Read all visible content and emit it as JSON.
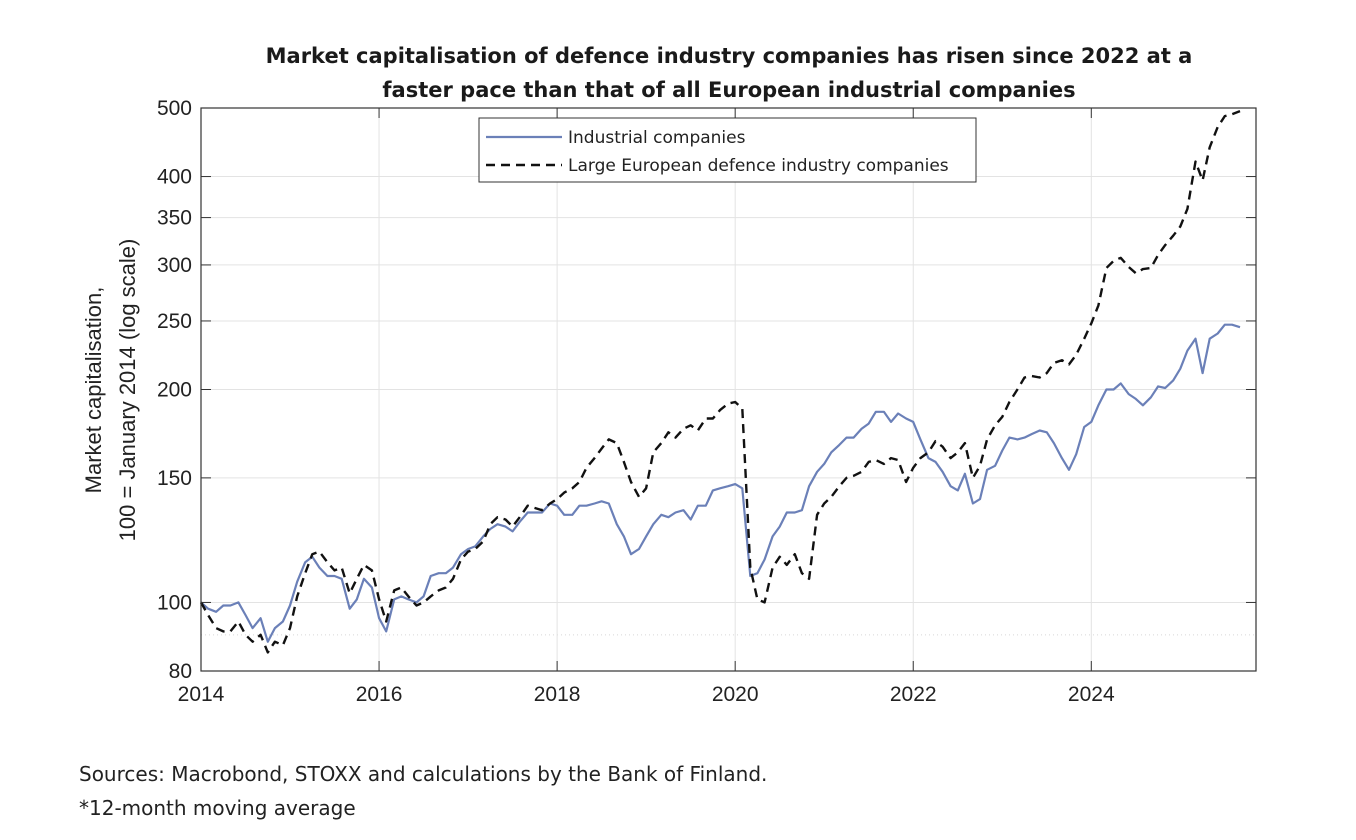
{
  "chart_data": {
    "type": "line",
    "title_lines": [
      "Market capitalisation of defence industry companies has risen since 2022 at a",
      "faster pace than that of all European industrial companies"
    ],
    "ylabel_lines": [
      "Market capitalisation,",
      "100 = January 2014 (log scale)"
    ],
    "xlabel": "",
    "y_scale": "log",
    "ylim": [
      80,
      500
    ],
    "xlim": [
      2014.0,
      2025.85
    ],
    "y_ticks": [
      80,
      100,
      150,
      200,
      250,
      300,
      350,
      400,
      500
    ],
    "x_ticks": [
      2014,
      2016,
      2018,
      2020,
      2022,
      2024
    ],
    "grid": true,
    "legend_position": "top-center",
    "series": [
      {
        "name": "Industrial companies",
        "color": "#6b80b8",
        "style": "solid",
        "points": [
          [
            2014.0,
            100
          ],
          [
            2014.08,
            98
          ],
          [
            2014.17,
            97
          ],
          [
            2014.25,
            99
          ],
          [
            2014.33,
            99
          ],
          [
            2014.42,
            100
          ],
          [
            2014.5,
            96
          ],
          [
            2014.58,
            92
          ],
          [
            2014.67,
            95
          ],
          [
            2014.75,
            88
          ],
          [
            2014.83,
            92
          ],
          [
            2014.92,
            94
          ],
          [
            2015.0,
            99
          ],
          [
            2015.08,
            107
          ],
          [
            2015.17,
            114
          ],
          [
            2015.25,
            116
          ],
          [
            2015.33,
            112
          ],
          [
            2015.42,
            109
          ],
          [
            2015.5,
            109
          ],
          [
            2015.58,
            108
          ],
          [
            2015.67,
            98
          ],
          [
            2015.75,
            101
          ],
          [
            2015.83,
            108
          ],
          [
            2015.92,
            105
          ],
          [
            2016.0,
            95
          ],
          [
            2016.08,
            91
          ],
          [
            2016.17,
            101
          ],
          [
            2016.25,
            102
          ],
          [
            2016.33,
            101
          ],
          [
            2016.42,
            100
          ],
          [
            2016.5,
            102
          ],
          [
            2016.58,
            109
          ],
          [
            2016.67,
            110
          ],
          [
            2016.75,
            110
          ],
          [
            2016.83,
            112
          ],
          [
            2016.92,
            117
          ],
          [
            2017.0,
            119
          ],
          [
            2017.08,
            120
          ],
          [
            2017.17,
            124
          ],
          [
            2017.25,
            127
          ],
          [
            2017.33,
            129
          ],
          [
            2017.42,
            128
          ],
          [
            2017.5,
            126
          ],
          [
            2017.58,
            130
          ],
          [
            2017.67,
            134
          ],
          [
            2017.75,
            134
          ],
          [
            2017.83,
            134
          ],
          [
            2017.92,
            138
          ],
          [
            2018.0,
            137
          ],
          [
            2018.08,
            133
          ],
          [
            2018.17,
            133
          ],
          [
            2018.25,
            137
          ],
          [
            2018.33,
            137
          ],
          [
            2018.42,
            138
          ],
          [
            2018.5,
            139
          ],
          [
            2018.58,
            138
          ],
          [
            2018.67,
            129
          ],
          [
            2018.75,
            124
          ],
          [
            2018.83,
            117
          ],
          [
            2018.92,
            119
          ],
          [
            2019.0,
            124
          ],
          [
            2019.08,
            129
          ],
          [
            2019.17,
            133
          ],
          [
            2019.25,
            132
          ],
          [
            2019.33,
            134
          ],
          [
            2019.42,
            135
          ],
          [
            2019.5,
            131
          ],
          [
            2019.58,
            137
          ],
          [
            2019.67,
            137
          ],
          [
            2019.75,
            144
          ],
          [
            2019.83,
            145
          ],
          [
            2019.92,
            146
          ],
          [
            2020.0,
            147
          ],
          [
            2020.08,
            145
          ],
          [
            2020.17,
            109
          ],
          [
            2020.25,
            110
          ],
          [
            2020.33,
            115
          ],
          [
            2020.42,
            124
          ],
          [
            2020.5,
            128
          ],
          [
            2020.58,
            134
          ],
          [
            2020.67,
            134
          ],
          [
            2020.75,
            135
          ],
          [
            2020.83,
            146
          ],
          [
            2020.92,
            153
          ],
          [
            2021.0,
            157
          ],
          [
            2021.08,
            163
          ],
          [
            2021.17,
            167
          ],
          [
            2021.25,
            171
          ],
          [
            2021.33,
            171
          ],
          [
            2021.42,
            176
          ],
          [
            2021.5,
            179
          ],
          [
            2021.58,
            186
          ],
          [
            2021.67,
            186
          ],
          [
            2021.75,
            180
          ],
          [
            2021.83,
            185
          ],
          [
            2021.92,
            182
          ],
          [
            2022.0,
            180
          ],
          [
            2022.08,
            170
          ],
          [
            2022.17,
            160
          ],
          [
            2022.25,
            158
          ],
          [
            2022.33,
            153
          ],
          [
            2022.42,
            146
          ],
          [
            2022.5,
            144
          ],
          [
            2022.58,
            152
          ],
          [
            2022.67,
            138
          ],
          [
            2022.75,
            140
          ],
          [
            2022.83,
            154
          ],
          [
            2022.92,
            156
          ],
          [
            2023.0,
            164
          ],
          [
            2023.08,
            171
          ],
          [
            2023.17,
            170
          ],
          [
            2023.25,
            171
          ],
          [
            2023.33,
            173
          ],
          [
            2023.42,
            175
          ],
          [
            2023.5,
            174
          ],
          [
            2023.58,
            168
          ],
          [
            2023.67,
            160
          ],
          [
            2023.75,
            154
          ],
          [
            2023.83,
            162
          ],
          [
            2023.92,
            177
          ],
          [
            2024.0,
            180
          ],
          [
            2024.08,
            190
          ],
          [
            2024.17,
            200
          ],
          [
            2024.25,
            200
          ],
          [
            2024.33,
            204
          ],
          [
            2024.42,
            197
          ],
          [
            2024.5,
            194
          ],
          [
            2024.58,
            190
          ],
          [
            2024.67,
            195
          ],
          [
            2024.75,
            202
          ],
          [
            2024.83,
            201
          ],
          [
            2024.92,
            206
          ],
          [
            2025.0,
            214
          ],
          [
            2025.08,
            227
          ],
          [
            2025.17,
            236
          ],
          [
            2025.25,
            211
          ],
          [
            2025.33,
            236
          ],
          [
            2025.42,
            240
          ],
          [
            2025.5,
            247
          ],
          [
            2025.58,
            247
          ],
          [
            2025.67,
            245
          ]
        ]
      },
      {
        "name": "Large European defence industry companies",
        "color": "#111111",
        "style": "dashed",
        "points": [
          [
            2014.0,
            100
          ],
          [
            2014.08,
            96
          ],
          [
            2014.17,
            92
          ],
          [
            2014.25,
            91
          ],
          [
            2014.33,
            91
          ],
          [
            2014.42,
            94
          ],
          [
            2014.5,
            90
          ],
          [
            2014.58,
            88
          ],
          [
            2014.67,
            90
          ],
          [
            2014.75,
            85
          ],
          [
            2014.83,
            88
          ],
          [
            2014.92,
            87
          ],
          [
            2015.0,
            92
          ],
          [
            2015.08,
            102
          ],
          [
            2015.17,
            110
          ],
          [
            2015.25,
            117
          ],
          [
            2015.33,
            118
          ],
          [
            2015.42,
            114
          ],
          [
            2015.5,
            111
          ],
          [
            2015.58,
            112
          ],
          [
            2015.67,
            103
          ],
          [
            2015.75,
            108
          ],
          [
            2015.83,
            113
          ],
          [
            2015.92,
            111
          ],
          [
            2016.0,
            101
          ],
          [
            2016.08,
            94
          ],
          [
            2016.17,
            104
          ],
          [
            2016.25,
            105
          ],
          [
            2016.33,
            102
          ],
          [
            2016.42,
            99
          ],
          [
            2016.5,
            100
          ],
          [
            2016.58,
            102
          ],
          [
            2016.67,
            104
          ],
          [
            2016.75,
            105
          ],
          [
            2016.83,
            108
          ],
          [
            2016.92,
            115
          ],
          [
            2017.0,
            118
          ],
          [
            2017.08,
            119
          ],
          [
            2017.17,
            122
          ],
          [
            2017.25,
            129
          ],
          [
            2017.33,
            132
          ],
          [
            2017.42,
            131
          ],
          [
            2017.5,
            128
          ],
          [
            2017.58,
            132
          ],
          [
            2017.67,
            137
          ],
          [
            2017.75,
            136
          ],
          [
            2017.83,
            135
          ],
          [
            2017.92,
            138
          ],
          [
            2018.0,
            140
          ],
          [
            2018.08,
            143
          ],
          [
            2018.17,
            145
          ],
          [
            2018.25,
            148
          ],
          [
            2018.33,
            155
          ],
          [
            2018.42,
            160
          ],
          [
            2018.5,
            165
          ],
          [
            2018.58,
            170
          ],
          [
            2018.67,
            168
          ],
          [
            2018.75,
            158
          ],
          [
            2018.83,
            148
          ],
          [
            2018.92,
            141
          ],
          [
            2019.0,
            145
          ],
          [
            2019.08,
            163
          ],
          [
            2019.17,
            168
          ],
          [
            2019.25,
            174
          ],
          [
            2019.33,
            171
          ],
          [
            2019.42,
            176
          ],
          [
            2019.5,
            178
          ],
          [
            2019.58,
            175
          ],
          [
            2019.67,
            182
          ],
          [
            2019.75,
            182
          ],
          [
            2019.83,
            187
          ],
          [
            2019.92,
            191
          ],
          [
            2020.0,
            192
          ],
          [
            2020.08,
            188
          ],
          [
            2020.17,
            112
          ],
          [
            2020.25,
            101
          ],
          [
            2020.33,
            100
          ],
          [
            2020.42,
            112
          ],
          [
            2020.5,
            116
          ],
          [
            2020.58,
            113
          ],
          [
            2020.67,
            117
          ],
          [
            2020.75,
            110
          ],
          [
            2020.83,
            108
          ],
          [
            2020.92,
            133
          ],
          [
            2021.0,
            138
          ],
          [
            2021.08,
            141
          ],
          [
            2021.17,
            146
          ],
          [
            2021.25,
            150
          ],
          [
            2021.33,
            151
          ],
          [
            2021.42,
            153
          ],
          [
            2021.5,
            158
          ],
          [
            2021.58,
            159
          ],
          [
            2021.67,
            157
          ],
          [
            2021.75,
            160
          ],
          [
            2021.83,
            159
          ],
          [
            2021.92,
            148
          ],
          [
            2022.0,
            155
          ],
          [
            2022.08,
            160
          ],
          [
            2022.17,
            163
          ],
          [
            2022.25,
            169
          ],
          [
            2022.33,
            166
          ],
          [
            2022.42,
            160
          ],
          [
            2022.5,
            163
          ],
          [
            2022.58,
            168
          ],
          [
            2022.67,
            150
          ],
          [
            2022.75,
            156
          ],
          [
            2022.83,
            170
          ],
          [
            2022.92,
            178
          ],
          [
            2023.0,
            183
          ],
          [
            2023.08,
            192
          ],
          [
            2023.17,
            200
          ],
          [
            2023.25,
            208
          ],
          [
            2023.33,
            209
          ],
          [
            2023.42,
            208
          ],
          [
            2023.5,
            211
          ],
          [
            2023.58,
            218
          ],
          [
            2023.67,
            220
          ],
          [
            2023.75,
            217
          ],
          [
            2023.83,
            224
          ],
          [
            2023.92,
            236
          ],
          [
            2024.0,
            248
          ],
          [
            2024.08,
            263
          ],
          [
            2024.17,
            297
          ],
          [
            2024.25,
            304
          ],
          [
            2024.33,
            307
          ],
          [
            2024.42,
            298
          ],
          [
            2024.5,
            292
          ],
          [
            2024.58,
            296
          ],
          [
            2024.67,
            297
          ],
          [
            2024.75,
            310
          ],
          [
            2024.83,
            320
          ],
          [
            2024.92,
            330
          ],
          [
            2025.0,
            340
          ],
          [
            2025.08,
            360
          ],
          [
            2025.17,
            420
          ],
          [
            2025.25,
            395
          ],
          [
            2025.33,
            440
          ],
          [
            2025.42,
            470
          ],
          [
            2025.5,
            487
          ],
          [
            2025.58,
            490
          ],
          [
            2025.67,
            495
          ]
        ]
      }
    ]
  },
  "footer": {
    "source": "Sources: Macrobond, STOXX and calculations by the Bank of Finland.",
    "note": "*12-month moving average"
  }
}
